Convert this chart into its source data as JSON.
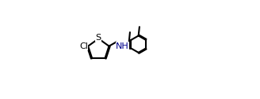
{
  "background_color": "#ffffff",
  "line_color": "#000000",
  "lw": 1.5,
  "NH_label": "NH",
  "Cl_label": "Cl",
  "S_label": "S",
  "NH_color": "#00008B",
  "label_color": "#000000",
  "fig_w": 3.28,
  "fig_h": 1.26,
  "dpi": 100
}
